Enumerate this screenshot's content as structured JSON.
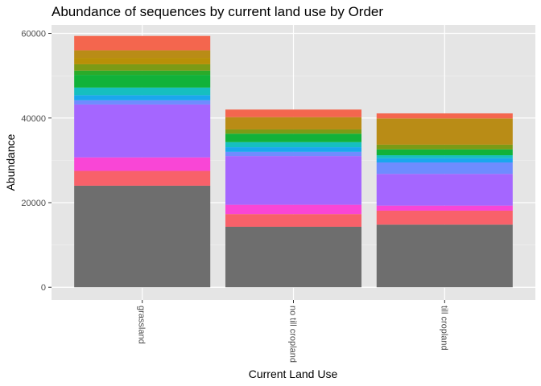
{
  "chart_data": {
    "type": "bar",
    "stacked": true,
    "title": "Abundance of sequences by current land use by Order",
    "xlabel": "Current Land Use",
    "ylabel": "Abundance",
    "ylim": [
      -3000,
      62000
    ],
    "y_ticks": [
      0,
      20000,
      40000,
      60000
    ],
    "y_tick_labels": [
      "0",
      "20000",
      "40000",
      "60000"
    ],
    "categories": [
      "grassland",
      "no till cropland",
      "till cropland"
    ],
    "x_tick_rotation": "vertical",
    "grid": true,
    "legend": "none",
    "background_color": "#e5e5e5",
    "totals": [
      59400,
      42000,
      41100
    ],
    "segments_bottom_to_top": [
      [
        {
          "color": "#6e6e6e",
          "value": 24000
        },
        {
          "color": "#f8616a",
          "value": 3500
        },
        {
          "color": "#f946d6",
          "value": 3200
        },
        {
          "color": "#a566ff",
          "value": 12500
        },
        {
          "color": "#6f8cff",
          "value": 1000
        },
        {
          "color": "#1aa7ee",
          "value": 1200
        },
        {
          "color": "#16bfc0",
          "value": 1800
        },
        {
          "color": "#11b23a",
          "value": 3000
        },
        {
          "color": "#2aab2a",
          "value": 1000
        },
        {
          "color": "#7b9b16",
          "value": 1500
        },
        {
          "color": "#b89007",
          "value": 1500
        },
        {
          "color": "#b98c16",
          "value": 1800
        },
        {
          "color": "#f4664e",
          "value": 3400
        }
      ],
      [
        {
          "color": "#6e6e6e",
          "value": 14300
        },
        {
          "color": "#f8616a",
          "value": 3000
        },
        {
          "color": "#f946d6",
          "value": 2200
        },
        {
          "color": "#a566ff",
          "value": 11500
        },
        {
          "color": "#6f8cff",
          "value": 1000
        },
        {
          "color": "#1aa7ee",
          "value": 1100
        },
        {
          "color": "#16bfc0",
          "value": 1200
        },
        {
          "color": "#11b23a",
          "value": 2000
        },
        {
          "color": "#7b9b16",
          "value": 1000
        },
        {
          "color": "#b98c16",
          "value": 2900
        },
        {
          "color": "#f4664e",
          "value": 1800
        }
      ],
      [
        {
          "color": "#6e6e6e",
          "value": 14800
        },
        {
          "color": "#f8616a",
          "value": 3300
        },
        {
          "color": "#f946d6",
          "value": 1200
        },
        {
          "color": "#a566ff",
          "value": 7500
        },
        {
          "color": "#6f8cff",
          "value": 2700
        },
        {
          "color": "#1aa7ee",
          "value": 1000
        },
        {
          "color": "#16bfc0",
          "value": 700
        },
        {
          "color": "#11b23a",
          "value": 1400
        },
        {
          "color": "#7b9b16",
          "value": 1100
        },
        {
          "color": "#b98c16",
          "value": 6200
        },
        {
          "color": "#f4664e",
          "value": 1200
        }
      ]
    ]
  }
}
